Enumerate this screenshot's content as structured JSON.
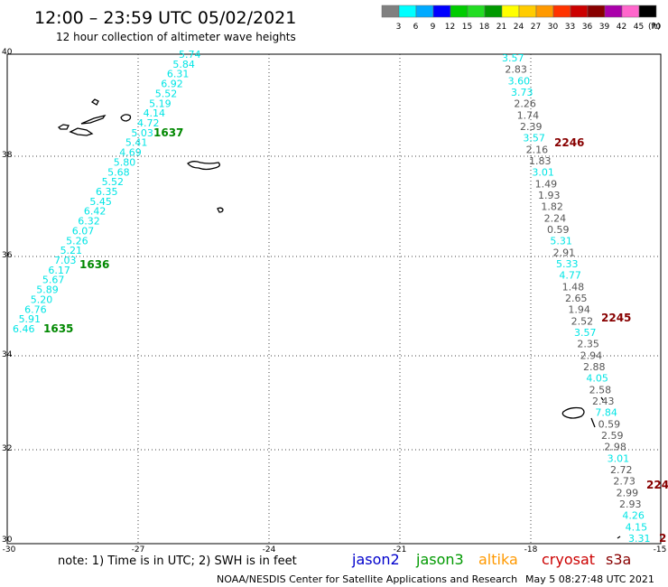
{
  "header": {
    "title": "12:00 – 23:59 UTC 05/02/2021",
    "subtitle": "12 hour collection of altimeter wave heights"
  },
  "colorbar": {
    "labels": [
      "3",
      "6",
      "9",
      "12",
      "15",
      "18",
      "21",
      "24",
      "27",
      "30",
      "33",
      "36",
      "39",
      "42",
      "45",
      "70"
    ],
    "unit": "(ft)",
    "colors": [
      "#808080",
      "#00ffff",
      "#00aaff",
      "#0000ff",
      "#00cc00",
      "#22dd22",
      "#009900",
      "#ffff00",
      "#ffcc00",
      "#ff9900",
      "#ff3300",
      "#cc0000",
      "#880000",
      "#aa00aa",
      "#ff66cc",
      "#000000"
    ]
  },
  "axes": {
    "lat_labels": [
      "40",
      "38",
      "36",
      "34",
      "32",
      "30"
    ],
    "lon_labels": [
      "-30",
      "-27",
      "-24",
      "-21",
      "-18",
      "-15"
    ]
  },
  "legend": {
    "note": "note: 1) Time is in UTC; 2) SWH is in feet",
    "satellites": [
      {
        "name": "jason2",
        "color": "#0000cc"
      },
      {
        "name": "jason3",
        "color": "#009900"
      },
      {
        "name": "altika",
        "color": "#ff9900"
      },
      {
        "name": "cryosat",
        "color": "#cc0000"
      },
      {
        "name": "s3a",
        "color": "#880000"
      }
    ]
  },
  "footer": {
    "credit": "NOAA/NESDIS Center for Satellite Applications and Research",
    "timestamp": "May  5 08:27:48 UTC 2021"
  },
  "tracks": {
    "left_track": {
      "color": "#00e5e5",
      "values": [
        "5.74",
        "5.84",
        "6.31",
        "6.92",
        "5.52",
        "5.19",
        "4.14",
        "4.72",
        "5.03",
        "5.41",
        "4.69",
        "5.80",
        "5.68",
        "5.52",
        "6.35",
        "5.45",
        "6.42",
        "6.32",
        "6.07",
        "5.26",
        "5.21",
        "7.03",
        "6.17",
        "5.67",
        "5.89",
        "5.20",
        "6.76",
        "5.91",
        "6.46"
      ],
      "time_labels": [
        {
          "text": "1637",
          "color": "#008800"
        },
        {
          "text": "1636",
          "color": "#008800"
        },
        {
          "text": "1635",
          "color": "#008800"
        }
      ]
    },
    "right_track": {
      "values": [
        {
          "v": "3.57",
          "c": "cyan"
        },
        {
          "v": "2.83",
          "c": "gray"
        },
        {
          "v": "3.60",
          "c": "cyan"
        },
        {
          "v": "3.73",
          "c": "cyan"
        },
        {
          "v": "2.26",
          "c": "gray"
        },
        {
          "v": "1.74",
          "c": "gray"
        },
        {
          "v": "2.39",
          "c": "gray"
        },
        {
          "v": "3.57",
          "c": "cyan"
        },
        {
          "v": "2.16",
          "c": "gray"
        },
        {
          "v": "1.83",
          "c": "gray"
        },
        {
          "v": "3.01",
          "c": "cyan"
        },
        {
          "v": "1.49",
          "c": "gray"
        },
        {
          "v": "1.93",
          "c": "gray"
        },
        {
          "v": "1.82",
          "c": "gray"
        },
        {
          "v": "2.24",
          "c": "gray"
        },
        {
          "v": "0.59",
          "c": "gray"
        },
        {
          "v": "5.31",
          "c": "cyan"
        },
        {
          "v": "2.91",
          "c": "gray"
        },
        {
          "v": "5.33",
          "c": "cyan"
        },
        {
          "v": "4.77",
          "c": "cyan"
        },
        {
          "v": "1.48",
          "c": "gray"
        },
        {
          "v": "2.65",
          "c": "gray"
        },
        {
          "v": "1.94",
          "c": "gray"
        },
        {
          "v": "2.52",
          "c": "gray"
        },
        {
          "v": "3.57",
          "c": "cyan"
        },
        {
          "v": "2.35",
          "c": "gray"
        },
        {
          "v": "2.94",
          "c": "gray"
        },
        {
          "v": "2.88",
          "c": "gray"
        },
        {
          "v": "4.05",
          "c": "cyan"
        },
        {
          "v": "2.58",
          "c": "gray"
        },
        {
          "v": "2.43",
          "c": "gray"
        },
        {
          "v": "7.84",
          "c": "cyan"
        },
        {
          "v": "0.59",
          "c": "gray"
        },
        {
          "v": "2.59",
          "c": "gray"
        },
        {
          "v": "2.98",
          "c": "gray"
        },
        {
          "v": "3.01",
          "c": "cyan"
        },
        {
          "v": "2.72",
          "c": "gray"
        },
        {
          "v": "2.73",
          "c": "gray"
        },
        {
          "v": "2.99",
          "c": "gray"
        },
        {
          "v": "2.93",
          "c": "gray"
        },
        {
          "v": "4.26",
          "c": "cyan"
        },
        {
          "v": "4.15",
          "c": "cyan"
        },
        {
          "v": "3.31",
          "c": "cyan"
        }
      ],
      "time_labels": [
        {
          "text": "2246",
          "color": "#880000"
        },
        {
          "text": "2245",
          "color": "#880000"
        },
        {
          "text": "224",
          "color": "#880000"
        },
        {
          "text": "2",
          "color": "#880000"
        }
      ]
    }
  }
}
